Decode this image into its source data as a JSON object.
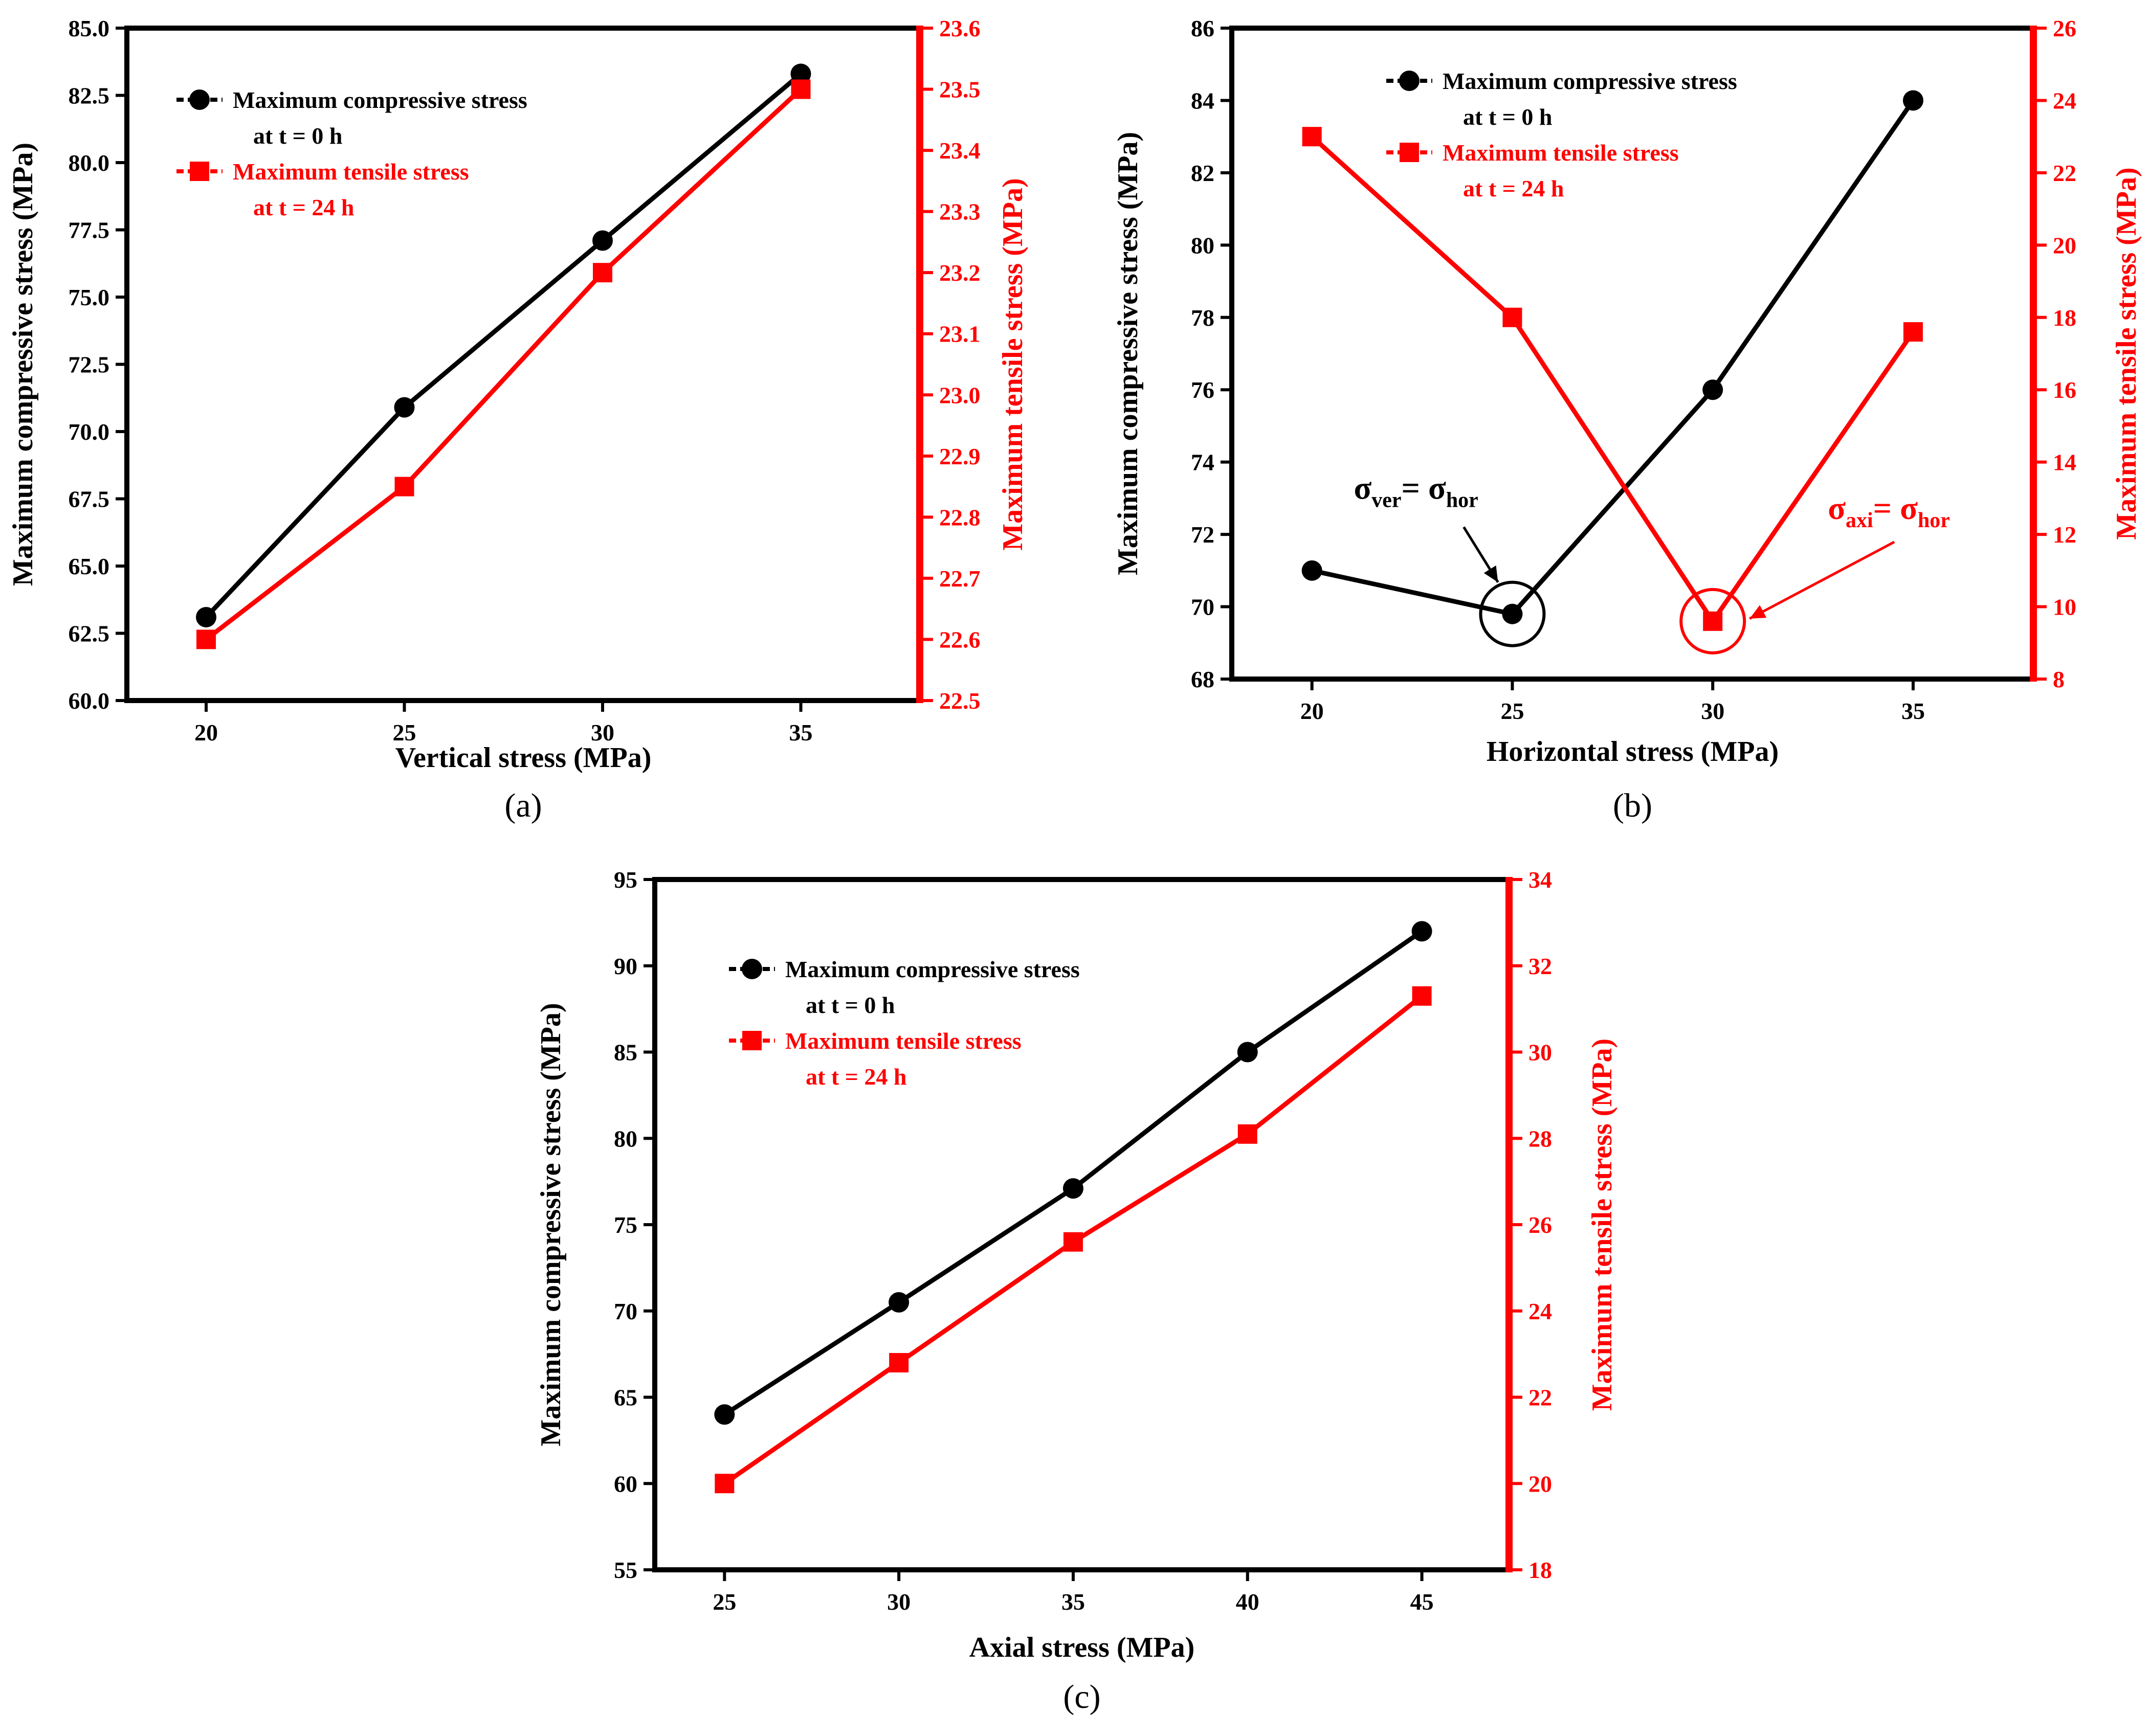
{
  "colors": {
    "compressive": "#000000",
    "tensile": "#ff0000",
    "frame": "#000000"
  },
  "icons": {
    "compressive_marker": "filled-circle-icon",
    "tensile_marker": "filled-square-icon"
  },
  "chart_data": [
    {
      "type": "line",
      "caption": "(a)",
      "xlabel": "Vertical stress (MPa)",
      "ylabel_left": "Maximum compressive stress (MPa)",
      "ylabel_right": "Maximum tensile stress (MPa)",
      "x": [
        20,
        25,
        30,
        35
      ],
      "xticks": [
        "20",
        "25",
        "30",
        "35"
      ],
      "xlim": [
        18,
        38
      ],
      "ylim_left": [
        60.0,
        85.0
      ],
      "ylim_right": [
        22.5,
        23.6
      ],
      "yticks_left": [
        "60.0",
        "62.5",
        "65.0",
        "67.5",
        "70.0",
        "72.5",
        "75.0",
        "77.5",
        "80.0",
        "82.5",
        "85.0"
      ],
      "yticks_right": [
        "22.5",
        "22.6",
        "22.7",
        "22.8",
        "22.9",
        "23.0",
        "23.1",
        "23.2",
        "23.3",
        "23.4",
        "23.5",
        "23.6"
      ],
      "legend": {
        "compressive": {
          "line1": "Maximum compressive stress",
          "line2": "at t = 0 h"
        },
        "tensile": {
          "line1": "Maximum tensile stress",
          "line2": "at t = 24 h"
        }
      },
      "series": [
        {
          "name": "Maximum compressive stress at t = 0 h",
          "axis": "left",
          "marker": "circle",
          "values": [
            63.1,
            70.9,
            77.1,
            83.3
          ]
        },
        {
          "name": "Maximum tensile stress at t = 24 h",
          "axis": "right",
          "marker": "square",
          "values": [
            22.6,
            22.85,
            23.2,
            23.5
          ]
        }
      ],
      "annotations": []
    },
    {
      "type": "line",
      "caption": "(b)",
      "xlabel": "Horizontal stress (MPa)",
      "ylabel_left": "Maximum compressive stress (MPa)",
      "ylabel_right": "Maximum tensile stress (MPa)",
      "x": [
        20,
        25,
        30,
        35
      ],
      "xticks": [
        "20",
        "25",
        "30",
        "35"
      ],
      "xlim": [
        18,
        38
      ],
      "ylim_left": [
        68,
        86
      ],
      "ylim_right": [
        8,
        26
      ],
      "yticks_left": [
        "68",
        "70",
        "72",
        "74",
        "76",
        "78",
        "80",
        "82",
        "84",
        "86"
      ],
      "yticks_right": [
        "8",
        "10",
        "12",
        "14",
        "16",
        "18",
        "20",
        "22",
        "24",
        "26"
      ],
      "legend": {
        "compressive": {
          "line1": "Maximum compressive stress",
          "line2": "at t = 0 h"
        },
        "tensile": {
          "line1": "Maximum tensile stress",
          "line2": "at t = 24 h"
        }
      },
      "series": [
        {
          "name": "Maximum compressive stress at t = 0 h",
          "axis": "left",
          "marker": "circle",
          "values": [
            71.0,
            69.8,
            76.0,
            84.0
          ]
        },
        {
          "name": "Maximum tensile stress at t = 24 h",
          "axis": "right",
          "marker": "square",
          "values": [
            23.0,
            18.0,
            9.6,
            17.6
          ]
        }
      ],
      "annotations": [
        {
          "label_main": "σ",
          "label_sub1": "ver",
          "label_eq": "= σ",
          "label_sub2": "hor",
          "color": "#000000",
          "series": 0,
          "x": 25
        },
        {
          "label_main": "σ",
          "label_sub1": "axi",
          "label_eq": "= σ",
          "label_sub2": "hor",
          "color": "#ff0000",
          "series": 1,
          "x": 30
        }
      ]
    },
    {
      "type": "line",
      "caption": "(c)",
      "xlabel": "Axial stress (MPa)",
      "ylabel_left": "Maximum compressive stress (MPa)",
      "ylabel_right": "Maximum tensile stress (MPa)",
      "x": [
        25,
        30,
        35,
        40,
        45
      ],
      "xticks": [
        "25",
        "30",
        "35",
        "40",
        "45"
      ],
      "xlim": [
        23,
        47.5
      ],
      "ylim_left": [
        55,
        95
      ],
      "ylim_right": [
        18,
        34
      ],
      "yticks_left": [
        "55",
        "60",
        "65",
        "70",
        "75",
        "80",
        "85",
        "90",
        "95"
      ],
      "yticks_right": [
        "18",
        "20",
        "22",
        "24",
        "26",
        "28",
        "30",
        "32",
        "34"
      ],
      "legend": {
        "compressive": {
          "line1": "Maximum compressive stress",
          "line2": "at t = 0 h"
        },
        "tensile": {
          "line1": "Maximum tensile stress",
          "line2": "at t = 24 h"
        }
      },
      "series": [
        {
          "name": "Maximum compressive stress at t = 0 h",
          "axis": "left",
          "marker": "circle",
          "values": [
            64,
            70.5,
            77.1,
            85,
            92
          ]
        },
        {
          "name": "Maximum tensile stress at t = 24 h",
          "axis": "right",
          "marker": "square",
          "values": [
            20,
            22.8,
            25.6,
            28.1,
            31.3
          ]
        }
      ],
      "annotations": []
    }
  ]
}
